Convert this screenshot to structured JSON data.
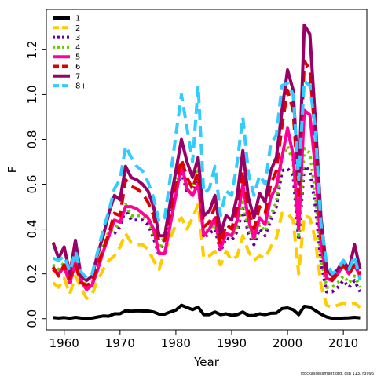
{
  "chart_data": {
    "type": "line",
    "title": "",
    "xlabel": "Year",
    "ylabel": "F",
    "xlim": [
      1956.8,
      2014.2
    ],
    "ylim": [
      -0.05,
      1.38
    ],
    "xticks": [
      1960,
      1970,
      1980,
      1990,
      2000,
      2010
    ],
    "yticks": [
      0.0,
      0.2,
      0.4,
      0.6,
      0.8,
      1.0,
      1.2
    ],
    "grid": false,
    "legend_position": "top-left",
    "footnote": "stockassessment.org, csh 113, r3096",
    "x": [
      1958,
      1959,
      1960,
      1961,
      1962,
      1963,
      1964,
      1965,
      1966,
      1967,
      1968,
      1969,
      1970,
      1971,
      1972,
      1973,
      1974,
      1975,
      1976,
      1977,
      1978,
      1979,
      1980,
      1981,
      1982,
      1983,
      1984,
      1985,
      1986,
      1987,
      1988,
      1989,
      1990,
      1991,
      1992,
      1993,
      1994,
      1995,
      1996,
      1997,
      1998,
      1999,
      2000,
      2001,
      2002,
      2003,
      2004,
      2005,
      2006,
      2007,
      2008,
      2009,
      2010,
      2011,
      2012,
      2013
    ],
    "series": [
      {
        "name": "1",
        "color": "#000000",
        "dash": "solid",
        "values": [
          0.005,
          0.003,
          0.005,
          0.002,
          0.006,
          0.003,
          0.001,
          0.003,
          0.008,
          0.012,
          0.011,
          0.022,
          0.022,
          0.035,
          0.033,
          0.035,
          0.034,
          0.034,
          0.03,
          0.02,
          0.02,
          0.03,
          0.038,
          0.06,
          0.05,
          0.04,
          0.052,
          0.018,
          0.018,
          0.03,
          0.018,
          0.022,
          0.015,
          0.018,
          0.03,
          0.014,
          0.014,
          0.022,
          0.018,
          0.024,
          0.025,
          0.045,
          0.048,
          0.04,
          0.018,
          0.055,
          0.052,
          0.036,
          0.02,
          0.008,
          0.002,
          0.002,
          0.003,
          0.004,
          0.006,
          0.004
        ]
      },
      {
        "name": "2",
        "color": "#ffcc00",
        "dash": "dashed",
        "values": [
          0.16,
          0.14,
          0.18,
          0.11,
          0.19,
          0.14,
          0.09,
          0.11,
          0.17,
          0.22,
          0.26,
          0.28,
          0.32,
          0.38,
          0.34,
          0.33,
          0.33,
          0.31,
          0.26,
          0.22,
          0.3,
          0.36,
          0.42,
          0.45,
          0.4,
          0.45,
          0.51,
          0.27,
          0.28,
          0.3,
          0.24,
          0.3,
          0.26,
          0.28,
          0.37,
          0.3,
          0.26,
          0.28,
          0.27,
          0.32,
          0.36,
          0.47,
          0.47,
          0.44,
          0.2,
          0.46,
          0.45,
          0.35,
          0.15,
          0.06,
          0.05,
          0.06,
          0.07,
          0.06,
          0.07,
          0.05
        ]
      },
      {
        "name": "3",
        "color": "#660099",
        "dash": "dotted",
        "values": [
          0.22,
          0.21,
          0.24,
          0.15,
          0.26,
          0.17,
          0.13,
          0.15,
          0.22,
          0.31,
          0.37,
          0.38,
          0.41,
          0.49,
          0.44,
          0.44,
          0.44,
          0.42,
          0.36,
          0.28,
          0.36,
          0.48,
          0.58,
          0.65,
          0.57,
          0.56,
          0.63,
          0.36,
          0.38,
          0.4,
          0.3,
          0.36,
          0.35,
          0.39,
          0.49,
          0.38,
          0.33,
          0.4,
          0.37,
          0.44,
          0.5,
          0.66,
          0.67,
          0.64,
          0.35,
          0.68,
          0.66,
          0.5,
          0.25,
          0.12,
          0.12,
          0.14,
          0.17,
          0.14,
          0.17,
          0.12
        ]
      },
      {
        "name": "4",
        "color": "#66cc00",
        "dash": "dotted",
        "values": [
          0.24,
          0.22,
          0.25,
          0.16,
          0.27,
          0.18,
          0.14,
          0.16,
          0.23,
          0.32,
          0.39,
          0.4,
          0.43,
          0.51,
          0.46,
          0.46,
          0.46,
          0.44,
          0.38,
          0.3,
          0.38,
          0.5,
          0.6,
          0.68,
          0.6,
          0.58,
          0.66,
          0.38,
          0.4,
          0.42,
          0.32,
          0.38,
          0.37,
          0.41,
          0.52,
          0.4,
          0.35,
          0.42,
          0.39,
          0.46,
          0.52,
          0.72,
          0.77,
          0.7,
          0.37,
          0.76,
          0.74,
          0.56,
          0.27,
          0.14,
          0.14,
          0.16,
          0.19,
          0.16,
          0.19,
          0.14
        ]
      },
      {
        "name": "5",
        "color": "#ff0099",
        "dash": "solid",
        "values": [
          0.22,
          0.2,
          0.23,
          0.16,
          0.25,
          0.17,
          0.13,
          0.15,
          0.22,
          0.3,
          0.37,
          0.44,
          0.43,
          0.5,
          0.5,
          0.49,
          0.47,
          0.45,
          0.4,
          0.29,
          0.29,
          0.42,
          0.55,
          0.69,
          0.58,
          0.55,
          0.6,
          0.37,
          0.4,
          0.45,
          0.31,
          0.38,
          0.37,
          0.44,
          0.6,
          0.44,
          0.36,
          0.45,
          0.42,
          0.54,
          0.59,
          0.72,
          0.85,
          0.73,
          0.4,
          0.93,
          0.91,
          0.67,
          0.33,
          0.18,
          0.17,
          0.2,
          0.24,
          0.2,
          0.24,
          0.19
        ]
      },
      {
        "name": "6",
        "color": "#dd0000",
        "dash": "dashed",
        "values": [
          0.23,
          0.19,
          0.24,
          0.18,
          0.24,
          0.16,
          0.15,
          0.16,
          0.24,
          0.31,
          0.38,
          0.47,
          0.46,
          0.62,
          0.59,
          0.58,
          0.56,
          0.52,
          0.46,
          0.34,
          0.35,
          0.47,
          0.61,
          0.71,
          0.63,
          0.58,
          0.66,
          0.41,
          0.43,
          0.5,
          0.33,
          0.42,
          0.4,
          0.5,
          0.66,
          0.48,
          0.4,
          0.5,
          0.47,
          0.6,
          0.66,
          0.86,
          1.02,
          0.93,
          0.55,
          1.15,
          1.11,
          0.8,
          0.4,
          0.2,
          0.17,
          0.2,
          0.24,
          0.2,
          0.24,
          0.2
        ]
      },
      {
        "name": "7",
        "color": "#990066",
        "dash": "solid",
        "values": [
          0.34,
          0.27,
          0.32,
          0.2,
          0.35,
          0.19,
          0.17,
          0.19,
          0.29,
          0.37,
          0.47,
          0.55,
          0.53,
          0.68,
          0.63,
          0.62,
          0.6,
          0.57,
          0.5,
          0.37,
          0.37,
          0.52,
          0.66,
          0.8,
          0.7,
          0.63,
          0.72,
          0.46,
          0.48,
          0.55,
          0.38,
          0.46,
          0.44,
          0.55,
          0.75,
          0.54,
          0.45,
          0.56,
          0.52,
          0.66,
          0.72,
          0.93,
          1.11,
          1.02,
          0.6,
          1.31,
          1.27,
          0.88,
          0.45,
          0.22,
          0.19,
          0.22,
          0.26,
          0.22,
          0.33,
          0.22
        ]
      },
      {
        "name": "8+",
        "color": "#33ccff",
        "dash": "dashed",
        "values": [
          0.27,
          0.26,
          0.28,
          0.21,
          0.3,
          0.21,
          0.18,
          0.2,
          0.3,
          0.4,
          0.48,
          0.58,
          0.62,
          0.77,
          0.72,
          0.68,
          0.66,
          0.61,
          0.54,
          0.43,
          0.45,
          0.63,
          0.82,
          1.0,
          0.85,
          0.7,
          1.04,
          0.56,
          0.58,
          0.68,
          0.46,
          0.57,
          0.55,
          0.7,
          0.9,
          0.65,
          0.55,
          0.64,
          0.6,
          0.78,
          0.82,
          1.04,
          1.05,
          1.0,
          0.62,
          1.06,
          1.04,
          0.84,
          0.42,
          0.25,
          0.2,
          0.22,
          0.26,
          0.22,
          0.28,
          0.17
        ]
      }
    ]
  }
}
